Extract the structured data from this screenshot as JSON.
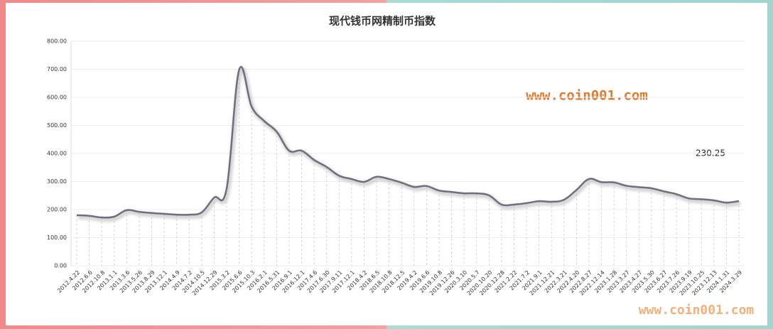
{
  "chart_data": {
    "type": "line",
    "title": "现代钱币网精制币指数",
    "watermarks": [
      "www.coin001.com",
      "www.coin001.com"
    ],
    "categories": [
      "2012.4.22",
      "2012.6.6",
      "2012.10.8",
      "2013.1.1",
      "2013.3.6",
      "2013.5.26",
      "2013.8.29",
      "2013.12.1",
      "2014.4.9",
      "2014.7.2",
      "2014.10.5",
      "2014.12.29",
      "2015.3.2",
      "2015.6.6",
      "2015.10.3",
      "2016.2.1",
      "2016.5.31",
      "2016.9.1",
      "2016.12.1",
      "2017.4.6",
      "2017.6.30",
      "2017.9.11",
      "2017.12.1",
      "2018.4.2",
      "2018.6.5",
      "2018.10.8",
      "2018.12.5",
      "2019.4.2",
      "2019.6.6",
      "2019.10.8",
      "2019.12.26",
      "2020.3.10",
      "2020.5.7",
      "2020.10.20",
      "2020.12.28",
      "2021.2.22",
      "2021.7.2",
      "2021.9.1",
      "2021.12.21",
      "2022.3.21",
      "2022.4.20",
      "2022.8.27",
      "2022.12.14",
      "2023.1.28",
      "2023.3.27",
      "2023.4.27",
      "2023.5.30",
      "2023.6.27",
      "2023.7.26",
      "2023.9.19",
      "2023.10.25",
      "2023.12.13",
      "2024.1.31",
      "2024.3.29"
    ],
    "values": [
      180,
      178,
      172,
      175,
      198,
      192,
      188,
      185,
      182,
      182,
      190,
      243,
      275,
      698,
      567,
      516,
      478,
      410,
      410,
      377,
      352,
      321,
      309,
      299,
      317,
      309,
      296,
      281,
      284,
      268,
      263,
      258,
      258,
      251,
      218,
      218,
      223,
      230,
      228,
      235,
      270,
      309,
      298,
      297,
      285,
      280,
      276,
      265,
      255,
      240,
      237,
      233,
      225,
      230.25
    ],
    "color": "#6e6e7e",
    "ylim": [
      0,
      800
    ],
    "yticks": [
      {
        "value": 0,
        "label": "0.00"
      },
      {
        "value": 100,
        "label": "100.00"
      },
      {
        "value": 200,
        "label": "200.00"
      },
      {
        "value": 300,
        "label": "300.00"
      },
      {
        "value": 400,
        "label": "400.00"
      },
      {
        "value": 500,
        "label": "500.00"
      },
      {
        "value": 600,
        "label": "600.00"
      },
      {
        "value": 700,
        "label": "700.00"
      },
      {
        "value": 800,
        "label": "800.00"
      }
    ],
    "grid": true
  }
}
